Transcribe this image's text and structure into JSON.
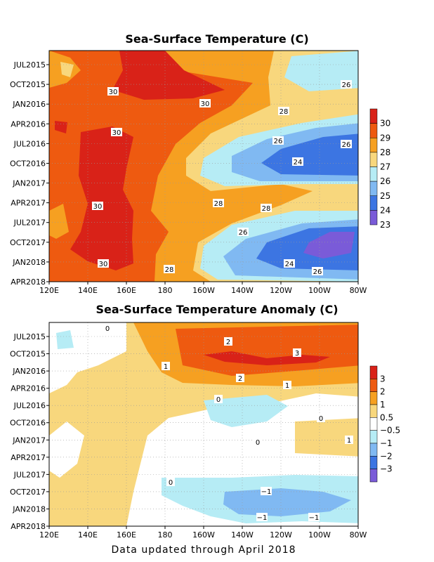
{
  "chart_data": [
    {
      "type": "heatmap",
      "title": "Sea-Surface Temperature (C)",
      "x_ticks": [
        "120E",
        "140E",
        "160E",
        "180",
        "160W",
        "140W",
        "120W",
        "100W",
        "80W"
      ],
      "y_ticks": [
        "JUL2015",
        "OCT2015",
        "JAN2016",
        "APR2016",
        "JUL2016",
        "OCT2016",
        "JAN2017",
        "APR2017",
        "JUL2017",
        "OCT2017",
        "JAN2018",
        "APR2018"
      ],
      "colorbar": {
        "levels": [
          "30",
          "29",
          "28",
          "27",
          "26",
          "25",
          "24",
          "23"
        ],
        "colors": [
          "#d92218",
          "#ee5a10",
          "#f6a021",
          "#f8d77d",
          "#b6ecf5",
          "#80b9f2",
          "#3c75e2",
          "#7a5bd8"
        ]
      },
      "contour_labels": [
        "30",
        "30",
        "26",
        "28",
        "30",
        "26",
        "24",
        "26",
        "30",
        "28",
        "28",
        "26",
        "30",
        "24",
        "28",
        "26"
      ],
      "legend_position": "right",
      "grid": true
    },
    {
      "type": "heatmap",
      "title": "Sea-Surface Temperature Anomaly (C)",
      "x_ticks": [
        "120E",
        "140E",
        "160E",
        "180",
        "160W",
        "140W",
        "120W",
        "100W",
        "80W"
      ],
      "y_ticks": [
        "JUL2015",
        "OCT2015",
        "JAN2016",
        "APR2016",
        "JUL2016",
        "OCT2016",
        "JAN2017",
        "APR2017",
        "JUL2017",
        "OCT2017",
        "JAN2018",
        "APR2018"
      ],
      "colorbar": {
        "levels": [
          "3",
          "2",
          "1",
          "0.5",
          "−0.5",
          "−1",
          "−2",
          "−3"
        ],
        "colors": [
          "#d92218",
          "#ee5a10",
          "#f6a021",
          "#f8d77d",
          "#ffffff",
          "#b6ecf5",
          "#80b9f2",
          "#3c75e2",
          "#7a5bd8"
        ]
      },
      "contour_labels": [
        "0",
        "2",
        "3",
        "1",
        "2",
        "1",
        "0",
        "0",
        "1",
        "0",
        "0",
        "−1",
        "−1",
        "−1"
      ],
      "legend_position": "right",
      "grid": true
    }
  ],
  "footer": "Data updated through April 2018"
}
